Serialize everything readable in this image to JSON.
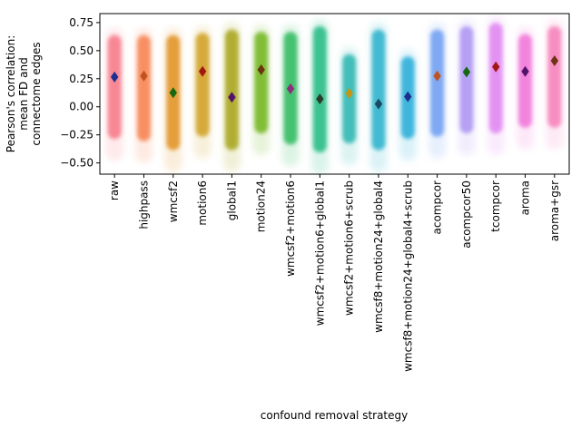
{
  "chart_data": {
    "type": "strip",
    "xlabel": "confound removal strategy",
    "ylabel_lines": [
      "Pearson's correlation:",
      "mean FD and",
      "connectome edges"
    ],
    "ylim": [
      -0.6,
      0.83
    ],
    "yticks": [
      -0.5,
      -0.25,
      0.0,
      0.25,
      0.5,
      0.75
    ],
    "ytick_labels": [
      "−0.50",
      "−0.25",
      "0.00",
      "0.25",
      "0.50",
      "0.75"
    ],
    "grid": false,
    "categories": [
      {
        "name": "raw",
        "color": "#f7828f",
        "marker_color": "#1d2f8f",
        "median": 0.265,
        "min": -0.4,
        "max": 0.67
      },
      {
        "name": "highpass",
        "color": "#f78b5c",
        "marker_color": "#c0531f",
        "median": 0.275,
        "min": -0.42,
        "max": 0.67
      },
      {
        "name": "wmcsf2",
        "color": "#e39a33",
        "marker_color": "#16680f",
        "median": 0.125,
        "min": -0.5,
        "max": 0.67
      },
      {
        "name": "motion6",
        "color": "#d4a730",
        "marker_color": "#a31712",
        "median": 0.315,
        "min": -0.38,
        "max": 0.69
      },
      {
        "name": "global1",
        "color": "#adab2c",
        "marker_color": "#52136b",
        "median": 0.085,
        "min": -0.5,
        "max": 0.72
      },
      {
        "name": "motion24",
        "color": "#7cbb2f",
        "marker_color": "#6b3310",
        "median": 0.33,
        "min": -0.35,
        "max": 0.7
      },
      {
        "name": "wmcsf2+motion6",
        "color": "#3cbf6a",
        "marker_color": "#8a2f7c",
        "median": 0.16,
        "min": -0.45,
        "max": 0.7
      },
      {
        "name": "wmcsf2+motion6+global1",
        "color": "#36c08e",
        "marker_color": "#2a3d2a",
        "median": 0.07,
        "min": -0.52,
        "max": 0.75
      },
      {
        "name": "wmcsf2+motion6+scrub",
        "color": "#3bbcb8",
        "marker_color": "#c49512",
        "median": 0.12,
        "min": -0.44,
        "max": 0.5
      },
      {
        "name": "wmcsf8+motion24+global4",
        "color": "#3ab8cf",
        "marker_color": "#1a4a5f",
        "median": 0.025,
        "min": -0.5,
        "max": 0.72
      },
      {
        "name": "wmcsf8+motion24+global4+scrub",
        "color": "#39b3dc",
        "marker_color": "#1d2f8f",
        "median": 0.09,
        "min": -0.4,
        "max": 0.48
      },
      {
        "name": "acompcor",
        "color": "#7aa6f3",
        "marker_color": "#c0531f",
        "median": 0.275,
        "min": -0.38,
        "max": 0.72
      },
      {
        "name": "acompcor50",
        "color": "#b39cf3",
        "marker_color": "#16680f",
        "median": 0.31,
        "min": -0.35,
        "max": 0.75
      },
      {
        "name": "tcompcor",
        "color": "#e28ef2",
        "marker_color": "#a31712",
        "median": 0.355,
        "min": -0.35,
        "max": 0.78
      },
      {
        "name": "aroma",
        "color": "#f27fdc",
        "marker_color": "#52136b",
        "median": 0.315,
        "min": -0.3,
        "max": 0.68
      },
      {
        "name": "aroma+gsr",
        "color": "#f789c0",
        "marker_color": "#6b3310",
        "median": 0.41,
        "min": -0.3,
        "max": 0.75
      }
    ]
  }
}
